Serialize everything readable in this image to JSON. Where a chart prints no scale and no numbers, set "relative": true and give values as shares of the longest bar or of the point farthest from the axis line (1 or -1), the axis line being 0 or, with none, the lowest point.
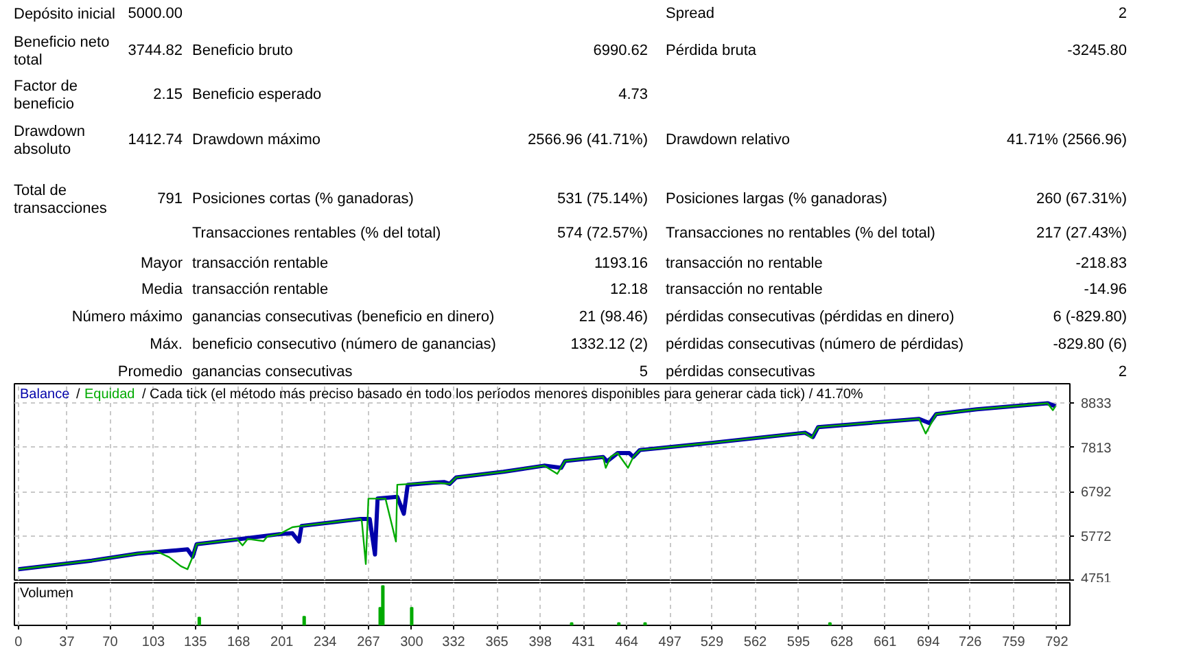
{
  "chart_data": [
    {
      "type": "other",
      "annotations": [
        "Depósito inicial",
        "5000.00",
        "Spread",
        "2",
        "Beneficio neto total",
        "3744.82",
        "Beneficio bruto",
        "6990.62",
        "Pérdida bruta",
        "-3245.80",
        "Factor de beneficio",
        "2.15",
        "Beneficio esperado",
        "4.73",
        "Drawdown absoluto",
        "1412.74",
        "Drawdown máximo",
        "2566.96 (41.71%)",
        "Drawdown relativo",
        "41.71% (2566.96)",
        "Total de transacciones",
        "791",
        "Posiciones cortas (% ganadoras)",
        "531 (75.14%)",
        "Posiciones largas (% ganadoras)",
        "260 (67.31%)",
        "Transacciones rentables (% del total)",
        "574 (72.57%)",
        "Transacciones no rentables (% del total)",
        "217 (27.43%)",
        "Mayor",
        "transacción rentable",
        "1193.16",
        "transacción no rentable",
        "-218.83",
        "Media",
        "transacción rentable",
        "12.18",
        "transacción no rentable",
        "-14.96",
        "Número máximo",
        "ganancias consecutivas (beneficio en dinero)",
        "21 (98.46)",
        "pérdidas consecutivas (pérdidas en dinero)",
        "6 (-829.80)",
        "Máx.",
        "beneficio consecutivo (número de ganancias)",
        "1332.12 (2)",
        "pérdidas consecutivas (número de pérdidas)",
        "-829.80 (6)",
        "Promedio",
        "ganancias consecutivas",
        "5",
        "pérdidas consecutivas",
        "2"
      ]
    },
    {
      "type": "line",
      "title": "/ Cada tick (el método más preciso basado en todo los períodos menores disponibles para generar cada tick)  / 41.70%",
      "annotations": [
        "/"
      ],
      "series": [
        {
          "name": "Equidad",
          "color": "#00aa00",
          "x": [
            0,
            56,
            91,
            105,
            115,
            124,
            129,
            133,
            136,
            167,
            171,
            175,
            187,
            190,
            199,
            209,
            216,
            261,
            262,
            265,
            267,
            280,
            288,
            289,
            317,
            329,
            334,
            370,
            401,
            411,
            417,
            432,
            446,
            448,
            452,
            457,
            465,
            469,
            474,
            530,
            600,
            605,
            610,
            687,
            692,
            700,
            731,
            785,
            789,
            791
          ],
          "values": [
            5000,
            5200,
            5360,
            5420,
            5280,
            5070,
            5000,
            5290,
            5580,
            5690,
            5550,
            5700,
            5650,
            5760,
            5810,
            5970,
            6000,
            6160,
            6100,
            5120,
            6630,
            6630,
            5640,
            6950,
            7000,
            6970,
            7120,
            7250,
            7390,
            7200,
            7500,
            7550,
            7590,
            7340,
            7600,
            7680,
            7340,
            7590,
            7750,
            7920,
            8150,
            8030,
            8280,
            8470,
            8130,
            8580,
            8690,
            8830,
            8670,
            8760
          ]
        },
        {
          "name": "Balance",
          "color": "#0000aa",
          "x": [
            0,
            56,
            91,
            129,
            133,
            136,
            167,
            199,
            209,
            214,
            216,
            261,
            268,
            272,
            274,
            289,
            294,
            297,
            317,
            325,
            329,
            334,
            370,
            401,
            414,
            417,
            446,
            449,
            457,
            466,
            469,
            474,
            530,
            600,
            606,
            610,
            687,
            695,
            700,
            731,
            785,
            791
          ],
          "values": [
            5000,
            5200,
            5360,
            5460,
            5290,
            5580,
            5690,
            5810,
            5830,
            5640,
            6000,
            6160,
            6160,
            5340,
            6630,
            6670,
            6280,
            6950,
            7000,
            7010,
            6970,
            7120,
            7250,
            7390,
            7340,
            7500,
            7590,
            7490,
            7680,
            7680,
            7590,
            7750,
            7920,
            8150,
            8050,
            8280,
            8470,
            8370,
            8580,
            8690,
            8830,
            8760
          ]
        }
      ],
      "xlim": [
        -3,
        802
      ],
      "xticks": [
        0,
        37,
        70,
        103,
        135,
        168,
        201,
        234,
        267,
        300,
        332,
        365,
        398,
        431,
        464,
        497,
        529,
        562,
        595,
        628,
        661,
        694,
        726,
        759,
        792
      ],
      "ylim": [
        4751,
        9280
      ],
      "yticks": [
        4751,
        5772,
        6792,
        7813,
        8833
      ],
      "grid": true,
      "tick_labels": "y"
    },
    {
      "type": "bar",
      "title": "Volumen",
      "relative": true,
      "color": "#00aa00",
      "x": [
        138,
        218,
        276,
        278,
        300,
        422,
        458,
        478,
        619
      ],
      "values": [
        0.2,
        0.22,
        0.45,
        1,
        0.45,
        0.06,
        0.06,
        0.06,
        0.06
      ],
      "xlim": [
        -3,
        802
      ],
      "xticks": [
        0,
        37,
        70,
        103,
        135,
        168,
        201,
        234,
        267,
        300,
        332,
        365,
        398,
        431,
        464,
        497,
        529,
        562,
        595,
        628,
        661,
        694,
        726,
        759,
        792
      ],
      "grid": "x",
      "tick_labels": "x"
    }
  ]
}
